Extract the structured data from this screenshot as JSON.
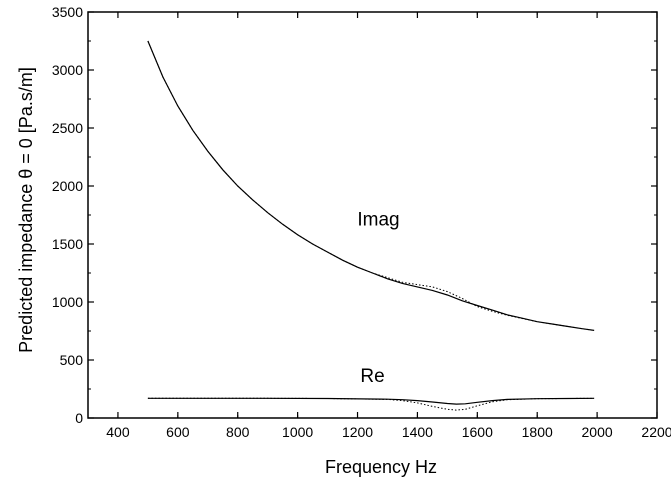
{
  "chart_data": {
    "type": "line",
    "title": "",
    "xlabel": "Frequency Hz",
    "ylabel": "Predicted impedance θ = 0  [Pa.s/m]",
    "xlim": [
      300,
      2200
    ],
    "ylim": [
      0,
      3500
    ],
    "xticks": [
      400,
      600,
      800,
      1000,
      1200,
      1400,
      1600,
      1800,
      2000,
      2200
    ],
    "yticks": [
      0,
      500,
      1000,
      1500,
      2000,
      2500,
      3000,
      3500
    ],
    "grid": false,
    "legend": "none",
    "annotations": [
      {
        "text": "Imag",
        "x": 1270,
        "y": 1660
      },
      {
        "text": "Re",
        "x": 1250,
        "y": 310
      }
    ],
    "series": [
      {
        "style": "solid",
        "x": [
          500,
          550,
          600,
          650,
          700,
          750,
          800,
          850,
          900,
          950,
          1000,
          1050,
          1100,
          1150,
          1200,
          1250,
          1300,
          1350,
          1400,
          1450,
          1500,
          1550,
          1600,
          1650,
          1700,
          1750,
          1800,
          1850,
          1900,
          1950,
          1990
        ],
        "y": [
          3250,
          2940,
          2690,
          2480,
          2300,
          2140,
          2000,
          1880,
          1770,
          1670,
          1580,
          1500,
          1430,
          1360,
          1300,
          1250,
          1200,
          1160,
          1130,
          1100,
          1060,
          1010,
          970,
          930,
          890,
          860,
          830,
          810,
          790,
          770,
          755
        ]
      },
      {
        "style": "dotted",
        "x": [
          500,
          550,
          600,
          650,
          700,
          750,
          800,
          850,
          900,
          950,
          1000,
          1050,
          1100,
          1150,
          1200,
          1250,
          1300,
          1350,
          1400,
          1450,
          1500,
          1550,
          1600,
          1650,
          1700,
          1750,
          1800,
          1850,
          1900,
          1950,
          1990
        ],
        "y": [
          3250,
          2940,
          2690,
          2480,
          2300,
          2140,
          2000,
          1880,
          1770,
          1670,
          1580,
          1500,
          1430,
          1360,
          1300,
          1250,
          1210,
          1170,
          1150,
          1130,
          1090,
          1030,
          960,
          920,
          885,
          858,
          830,
          810,
          790,
          770,
          755
        ]
      },
      {
        "style": "solid",
        "x": [
          500,
          700,
          900,
          1100,
          1300,
          1350,
          1400,
          1450,
          1500,
          1530,
          1560,
          1600,
          1650,
          1700,
          1800,
          1900,
          1990
        ],
        "y": [
          170,
          170,
          170,
          168,
          162,
          158,
          150,
          138,
          125,
          120,
          122,
          135,
          150,
          160,
          166,
          168,
          170
        ]
      },
      {
        "style": "dotted",
        "x": [
          500,
          700,
          900,
          1100,
          1300,
          1350,
          1400,
          1450,
          1500,
          1530,
          1560,
          1600,
          1650,
          1700,
          1800,
          1900,
          1990
        ],
        "y": [
          170,
          170,
          170,
          168,
          160,
          150,
          130,
          100,
          75,
          68,
          75,
          105,
          140,
          158,
          166,
          168,
          170
        ]
      }
    ]
  }
}
